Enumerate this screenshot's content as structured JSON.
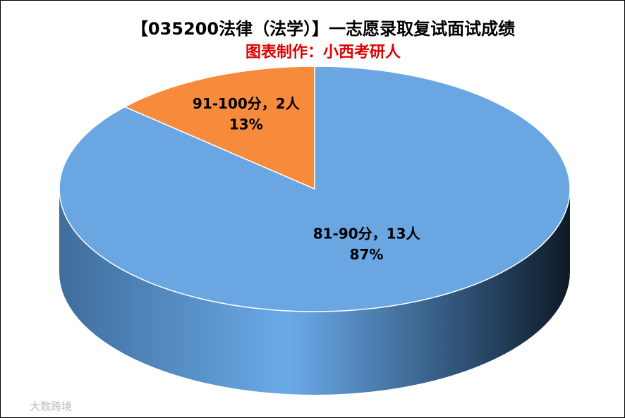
{
  "chart_data": {
    "type": "pie3d",
    "title": "【035200法律（法学）】一志愿录取复试面试成绩",
    "subtitle": "图表制作：小西考研人",
    "categories": [
      "81-90分",
      "91-100分"
    ],
    "values": [
      13,
      2
    ],
    "value_labels": [
      "13人",
      "2人"
    ],
    "label_separator": "，",
    "percents": [
      87,
      13
    ],
    "percent_labels": [
      "87%",
      "13%"
    ],
    "colors": [
      "#69a6e2",
      "#f68b3c"
    ],
    "watermark": "大数跨境"
  }
}
